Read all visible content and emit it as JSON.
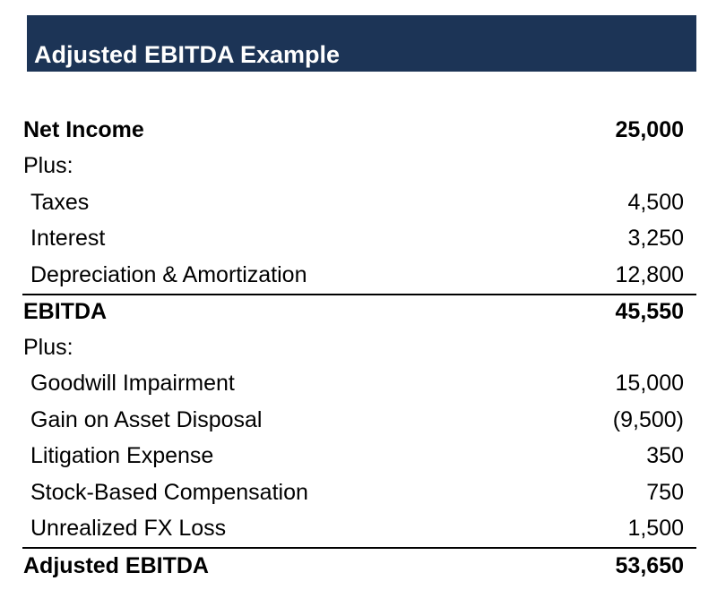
{
  "page": {
    "accent_color": "#1c3456",
    "title_text_color": "#ffffff",
    "body_text_color": "#000000"
  },
  "header": {
    "title": "Adjusted EBITDA Example"
  },
  "table": {
    "rows": [
      {
        "label": "Net Income",
        "value": "25,000",
        "bold": true,
        "indent": false,
        "border_top": false
      },
      {
        "label": "Plus:",
        "value": "",
        "bold": false,
        "indent": false,
        "border_top": false
      },
      {
        "label": "Taxes",
        "value": "4,500",
        "bold": false,
        "indent": true,
        "border_top": false
      },
      {
        "label": "Interest",
        "value": "3,250",
        "bold": false,
        "indent": true,
        "border_top": false
      },
      {
        "label": "Depreciation & Amortization",
        "value": "12,800",
        "bold": false,
        "indent": true,
        "border_top": false
      },
      {
        "label": "EBITDA",
        "value": "45,550",
        "bold": true,
        "indent": false,
        "border_top": true
      },
      {
        "label": "Plus:",
        "value": "",
        "bold": false,
        "indent": false,
        "border_top": false
      },
      {
        "label": "Goodwill Impairment",
        "value": "15,000",
        "bold": false,
        "indent": true,
        "border_top": false
      },
      {
        "label": "Gain on Asset Disposal",
        "value": "(9,500)",
        "bold": false,
        "indent": true,
        "border_top": false
      },
      {
        "label": "Litigation Expense",
        "value": "350",
        "bold": false,
        "indent": true,
        "border_top": false
      },
      {
        "label": "Stock-Based Compensation",
        "value": "750",
        "bold": false,
        "indent": true,
        "border_top": false
      },
      {
        "label": "Unrealized FX Loss",
        "value": "1,500",
        "bold": false,
        "indent": true,
        "border_top": false
      },
      {
        "label": "Adjusted EBITDA",
        "value": "53,650",
        "bold": true,
        "indent": false,
        "border_top": true
      }
    ]
  }
}
